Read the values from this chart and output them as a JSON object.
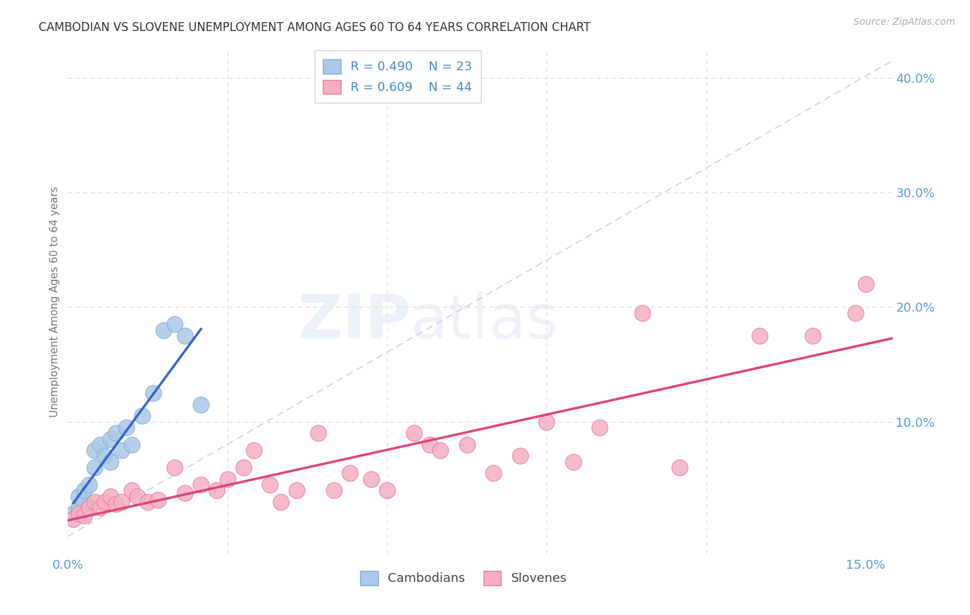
{
  "title": "CAMBODIAN VS SLOVENE UNEMPLOYMENT AMONG AGES 60 TO 64 YEARS CORRELATION CHART",
  "source": "Source: ZipAtlas.com",
  "ylabel": "Unemployment Among Ages 60 to 64 years",
  "xlim": [
    0.0,
    0.155
  ],
  "ylim": [
    -0.015,
    0.425
  ],
  "xticks": [
    0.0,
    0.03,
    0.06,
    0.09,
    0.12,
    0.15
  ],
  "xtick_labels": [
    "0.0%",
    "",
    "",
    "",
    "",
    "15.0%"
  ],
  "yticks_right": [
    0.1,
    0.2,
    0.3,
    0.4
  ],
  "ytick_right_labels": [
    "10.0%",
    "20.0%",
    "30.0%",
    "40.0%"
  ],
  "cambodian_color": "#aac8e8",
  "slovene_color": "#f5afc0",
  "cambodian_edge": "#7aaed6",
  "slovene_edge": "#e878a0",
  "trend_cambodian_color": "#3366cc",
  "trend_slovene_color": "#dd4477",
  "ref_line_color": "#c0d4e8",
  "legend_r_cambodian": "R = 0.490",
  "legend_n_cambodian": "N = 23",
  "legend_r_slovene": "R = 0.609",
  "legend_n_slovene": "N = 44",
  "legend_label_cambodian": "Cambodians",
  "legend_label_slovene": "Slovenes",
  "watermark_zip": "ZIP",
  "watermark_atlas": "atlas",
  "cambodian_x": [
    0.001,
    0.002,
    0.002,
    0.003,
    0.003,
    0.004,
    0.004,
    0.005,
    0.005,
    0.006,
    0.007,
    0.008,
    0.008,
    0.009,
    0.01,
    0.011,
    0.012,
    0.014,
    0.016,
    0.018,
    0.02,
    0.022,
    0.025
  ],
  "cambodian_y": [
    0.02,
    0.025,
    0.035,
    0.03,
    0.04,
    0.025,
    0.045,
    0.06,
    0.075,
    0.08,
    0.07,
    0.085,
    0.065,
    0.09,
    0.075,
    0.095,
    0.08,
    0.105,
    0.125,
    0.18,
    0.185,
    0.175,
    0.115
  ],
  "slovene_x": [
    0.001,
    0.002,
    0.003,
    0.004,
    0.005,
    0.006,
    0.007,
    0.008,
    0.009,
    0.01,
    0.012,
    0.013,
    0.015,
    0.017,
    0.02,
    0.022,
    0.025,
    0.028,
    0.03,
    0.033,
    0.035,
    0.038,
    0.04,
    0.043,
    0.047,
    0.05,
    0.053,
    0.057,
    0.06,
    0.065,
    0.068,
    0.07,
    0.075,
    0.08,
    0.085,
    0.09,
    0.095,
    0.1,
    0.108,
    0.115,
    0.13,
    0.14,
    0.148,
    0.15
  ],
  "slovene_y": [
    0.015,
    0.02,
    0.018,
    0.025,
    0.03,
    0.025,
    0.03,
    0.035,
    0.028,
    0.03,
    0.04,
    0.035,
    0.03,
    0.032,
    0.06,
    0.038,
    0.045,
    0.04,
    0.05,
    0.06,
    0.075,
    0.045,
    0.03,
    0.04,
    0.09,
    0.04,
    0.055,
    0.05,
    0.04,
    0.09,
    0.08,
    0.075,
    0.08,
    0.055,
    0.07,
    0.1,
    0.065,
    0.095,
    0.195,
    0.06,
    0.175,
    0.175,
    0.195,
    0.22
  ],
  "background_color": "#ffffff",
  "grid_color": "#d8d8d8",
  "tick_color": "#5599dd",
  "title_color": "#333333",
  "label_color": "#888888"
}
